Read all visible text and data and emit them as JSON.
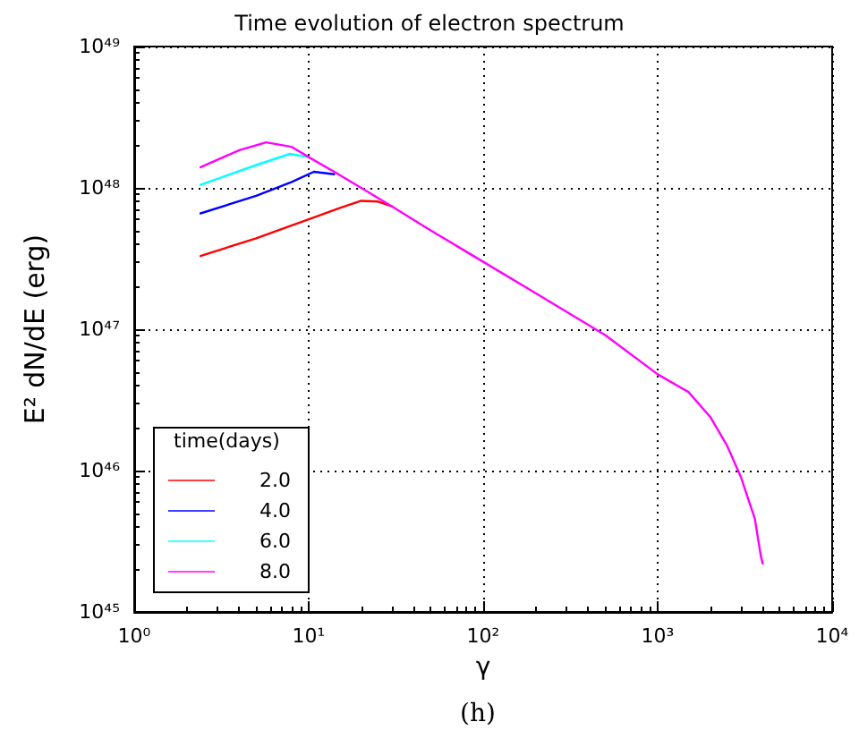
{
  "chart_data": {
    "type": "line",
    "title": "Time evolution of electron spectrum",
    "xlabel": "γ",
    "ylabel": "E² dN/dE (erg)",
    "legend_title": "time(days)",
    "annotations": [
      "(h)"
    ],
    "log": "xy",
    "grid": true,
    "legend": "bottom left",
    "marker": "none",
    "line_style": "solid",
    "xlim": [
      1,
      10000
    ],
    "ylim": [
      1e+45,
      1e+49
    ],
    "xticks": [
      {
        "value": 1,
        "label": "10⁰"
      },
      {
        "value": 10,
        "label": "10¹"
      },
      {
        "value": 100,
        "label": "10²"
      },
      {
        "value": 1000,
        "label": "10³"
      },
      {
        "value": 10000,
        "label": "10⁴"
      }
    ],
    "yticks": [
      {
        "value": 1e+45,
        "label": "10⁴⁵"
      },
      {
        "value": 1e+46,
        "label": "10⁴⁶"
      },
      {
        "value": 1e+47,
        "label": "10⁴⁷"
      },
      {
        "value": 1e+48,
        "label": "10⁴⁸"
      },
      {
        "value": 1e+49,
        "label": "10⁴⁹"
      }
    ],
    "series": [
      {
        "name": "2.0",
        "color": "#ff0000",
        "x": [
          2.4,
          5,
          10,
          15,
          20,
          25,
          30
        ],
        "values": [
          3.3e+47,
          4.4e+47,
          6e+47,
          7.2e+47,
          8.1e+47,
          8e+47,
          7.4e+47
        ]
      },
      {
        "name": "4.0",
        "color": "#0000ff",
        "x": [
          2.4,
          5,
          8,
          10.7,
          14
        ],
        "values": [
          6.6e+47,
          8.8e+47,
          1.1e+48,
          1.3e+48,
          1.25e+48
        ]
      },
      {
        "name": "6.0",
        "color": "#00ffff",
        "x": [
          2.4,
          5,
          7.8,
          10
        ],
        "values": [
          1.05e+48,
          1.45e+48,
          1.74e+48,
          1.65e+48
        ]
      },
      {
        "name": "8.0",
        "color": "#ff00ff",
        "x": [
          2.4,
          4,
          5.7,
          8,
          10,
          14,
          20,
          30,
          50,
          100,
          200,
          500,
          1000,
          1500,
          2000,
          2500,
          3000,
          3300,
          3600,
          3900,
          4000
        ],
        "values": [
          1.4e+48,
          1.85e+48,
          2.1e+48,
          1.95e+48,
          1.65e+48,
          1.3e+48,
          1e+48,
          7.4e+47,
          5e+47,
          3e+47,
          1.8e+47,
          9.1e+46,
          4.8e+46,
          3.6e+46,
          2.4e+46,
          1.5e+46,
          9e+45,
          6.3e+45,
          4.6e+45,
          2.5e+45,
          2.2e+45
        ]
      }
    ]
  }
}
